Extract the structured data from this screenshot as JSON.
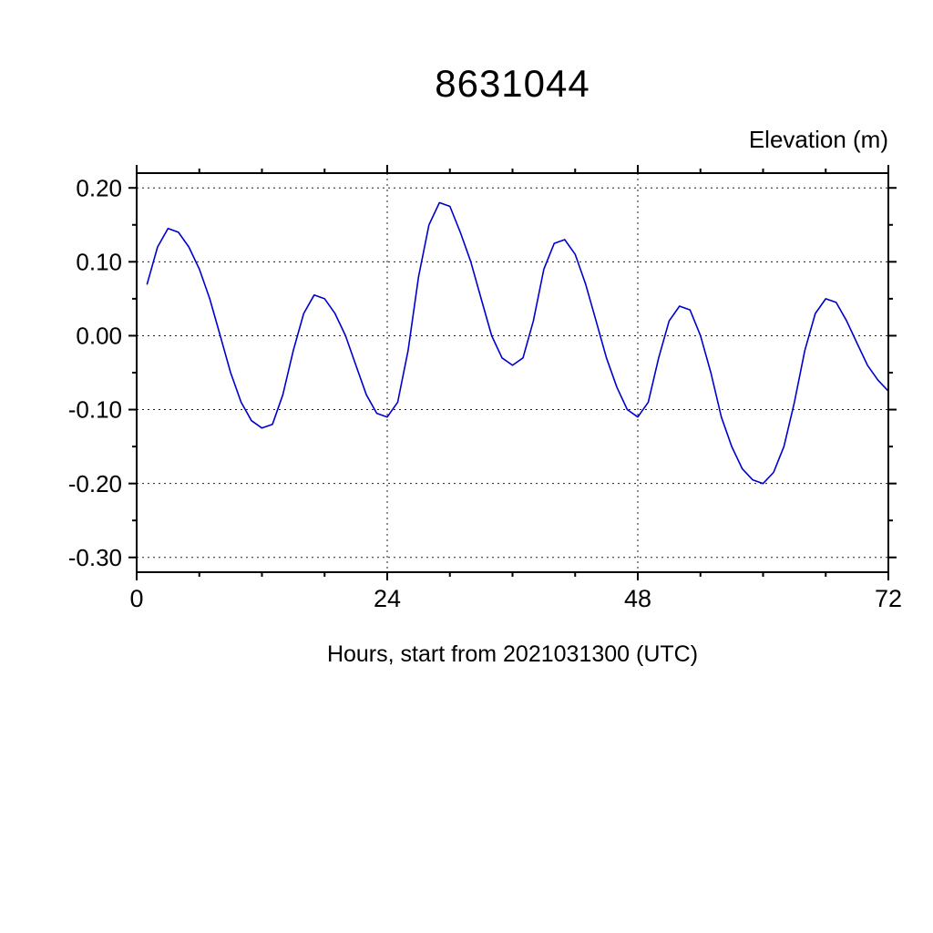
{
  "page": {
    "background": "#ffffff"
  },
  "chart_data": {
    "type": "line",
    "title": "8631044",
    "ylabel": "Elevation (m)",
    "xlabel": "Hours, start from 2021031300 (UTC)",
    "xlim": [
      0,
      72
    ],
    "ylim": [
      -0.32,
      0.22
    ],
    "x_ticks": [
      {
        "v": 0,
        "label": "0"
      },
      {
        "v": 24,
        "label": "24"
      },
      {
        "v": 48,
        "label": "48"
      },
      {
        "v": 72,
        "label": "72"
      }
    ],
    "y_ticks": [
      {
        "v": 0.2,
        "label": "0.20"
      },
      {
        "v": 0.1,
        "label": "0.10"
      },
      {
        "v": 0.0,
        "label": "0.00"
      },
      {
        "v": -0.1,
        "label": "-0.10"
      },
      {
        "v": -0.2,
        "label": "-0.20"
      },
      {
        "v": -0.3,
        "label": "-0.30"
      }
    ],
    "x_minor": [
      6,
      12,
      18,
      30,
      36,
      42,
      54,
      60,
      66
    ],
    "y_minor": [
      0.15,
      0.05,
      -0.05,
      -0.15,
      -0.25
    ],
    "grid": {
      "x_values": [
        24,
        48
      ],
      "y_values": [
        0.2,
        0.1,
        0.0,
        -0.1,
        -0.2,
        -0.3
      ],
      "style": "dashed",
      "color": "#222222"
    },
    "line_color": "#0000cd",
    "frame_color": "#000000",
    "series": [
      {
        "name": "elevation",
        "x": [
          1,
          2,
          3,
          4,
          5,
          6,
          7,
          8,
          9,
          10,
          11,
          12,
          13,
          14,
          15,
          16,
          17,
          18,
          19,
          20,
          21,
          22,
          23,
          24,
          25,
          26,
          27,
          28,
          29,
          30,
          31,
          32,
          33,
          34,
          35,
          36,
          37,
          38,
          39,
          40,
          41,
          42,
          43,
          44,
          45,
          46,
          47,
          48,
          49,
          50,
          51,
          52,
          53,
          54,
          55,
          56,
          57,
          58,
          59,
          60,
          61,
          62,
          63,
          64,
          65,
          66,
          67,
          68,
          69,
          70,
          71,
          72
        ],
        "y": [
          0.07,
          0.12,
          0.145,
          0.14,
          0.12,
          0.09,
          0.05,
          0.0,
          -0.05,
          -0.09,
          -0.115,
          -0.125,
          -0.12,
          -0.08,
          -0.02,
          0.03,
          0.055,
          0.05,
          0.03,
          0.0,
          -0.04,
          -0.08,
          -0.105,
          -0.11,
          -0.09,
          -0.02,
          0.08,
          0.15,
          0.18,
          0.175,
          0.14,
          0.1,
          0.05,
          0.0,
          -0.03,
          -0.04,
          -0.03,
          0.02,
          0.09,
          0.125,
          0.13,
          0.11,
          0.07,
          0.02,
          -0.03,
          -0.07,
          -0.1,
          -0.11,
          -0.09,
          -0.03,
          0.02,
          0.04,
          0.035,
          0.0,
          -0.05,
          -0.11,
          -0.15,
          -0.18,
          -0.195,
          -0.2,
          -0.185,
          -0.15,
          -0.09,
          -0.02,
          0.03,
          0.05,
          0.045,
          0.02,
          -0.01,
          -0.04,
          -0.06,
          -0.075
        ]
      }
    ]
  }
}
